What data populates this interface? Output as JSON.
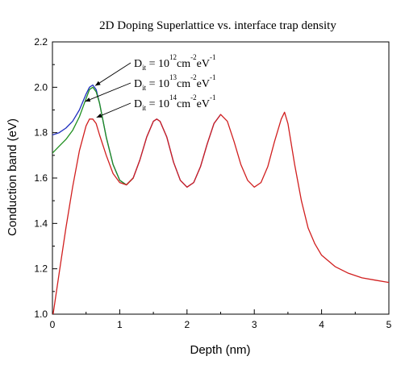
{
  "chart_data": {
    "type": "line",
    "title": "2D Doping Superlattice vs. interface trap density",
    "xlabel": "Depth (nm)",
    "ylabel": "Conduction band (eV)",
    "xlim": [
      0,
      5
    ],
    "ylim": [
      1.0,
      2.2
    ],
    "x_ticks": [
      "0",
      "1",
      "2",
      "3",
      "4",
      "5"
    ],
    "y_ticks": [
      "1.0",
      "1.2",
      "1.4",
      "1.6",
      "1.8",
      "2.0",
      "2.2"
    ],
    "grid": false,
    "annotations": [
      {
        "base": "D",
        "sub": "it",
        "mid1": " = 10",
        "sup1": "12",
        "mid2": "cm",
        "sup2": "-2",
        "mid3": "eV",
        "sup3": "-1",
        "points_to": [
          0.6,
          2.0
        ]
      },
      {
        "base": "D",
        "sub": "it",
        "mid1": " = 10",
        "sup1": "13",
        "mid2": "cm",
        "sup2": "-2",
        "mid3": "eV",
        "sup3": "-1",
        "points_to": [
          0.45,
          1.93
        ]
      },
      {
        "base": "D",
        "sub": "it",
        "mid1": " = 10",
        "sup1": "14",
        "mid2": "cm",
        "sup2": "-2",
        "mid3": "eV",
        "sup3": "-1",
        "points_to": [
          0.62,
          1.86
        ]
      }
    ],
    "series": [
      {
        "color": "#1f2fbf",
        "x": [
          0,
          0.1,
          0.2,
          0.3,
          0.4,
          0.5,
          0.55,
          0.6,
          0.65,
          0.7,
          0.8,
          0.9,
          1.0,
          1.1,
          1.2,
          1.3,
          1.4,
          1.5,
          1.55,
          1.6,
          1.7,
          1.8,
          1.9,
          2.0,
          2.1,
          2.2,
          2.3,
          2.4,
          2.5
        ],
        "y": [
          1.79,
          1.8,
          1.82,
          1.85,
          1.9,
          1.97,
          2.0,
          2.01,
          1.99,
          1.93,
          1.78,
          1.66,
          1.59,
          1.57,
          1.6,
          1.68,
          1.78,
          1.85,
          1.86,
          1.85,
          1.78,
          1.67,
          1.59,
          1.56,
          1.58,
          1.65,
          1.75,
          1.84,
          1.88
        ]
      },
      {
        "color": "#1f8f1f",
        "x": [
          0,
          0.1,
          0.2,
          0.3,
          0.4,
          0.5,
          0.55,
          0.6,
          0.65,
          0.7,
          0.8,
          0.9,
          1.0,
          1.1,
          1.2
        ],
        "y": [
          1.71,
          1.74,
          1.77,
          1.81,
          1.87,
          1.95,
          1.99,
          2.0,
          1.98,
          1.93,
          1.78,
          1.66,
          1.59,
          1.57,
          1.6
        ]
      },
      {
        "color": "#d11f1f",
        "x": [
          0,
          0.1,
          0.2,
          0.3,
          0.4,
          0.5,
          0.55,
          0.6,
          0.65,
          0.7,
          0.8,
          0.9,
          1.0,
          1.1,
          1.2,
          1.3,
          1.4,
          1.5,
          1.55,
          1.6,
          1.7,
          1.8,
          1.9,
          2.0,
          2.1,
          2.2,
          2.3,
          2.4,
          2.5,
          2.6,
          2.7,
          2.8,
          2.9,
          3.0,
          3.1,
          3.2,
          3.3,
          3.4,
          3.45,
          3.5,
          3.6,
          3.7,
          3.8,
          3.9,
          4.0,
          4.2,
          4.4,
          4.6,
          4.8,
          5.0
        ],
        "y": [
          0.98,
          1.18,
          1.38,
          1.56,
          1.72,
          1.83,
          1.86,
          1.86,
          1.84,
          1.79,
          1.7,
          1.62,
          1.58,
          1.57,
          1.6,
          1.68,
          1.78,
          1.85,
          1.86,
          1.85,
          1.78,
          1.67,
          1.59,
          1.56,
          1.58,
          1.65,
          1.75,
          1.84,
          1.88,
          1.85,
          1.76,
          1.66,
          1.59,
          1.56,
          1.58,
          1.65,
          1.76,
          1.86,
          1.89,
          1.84,
          1.66,
          1.5,
          1.38,
          1.31,
          1.26,
          1.21,
          1.18,
          1.16,
          1.15,
          1.14
        ]
      }
    ]
  }
}
